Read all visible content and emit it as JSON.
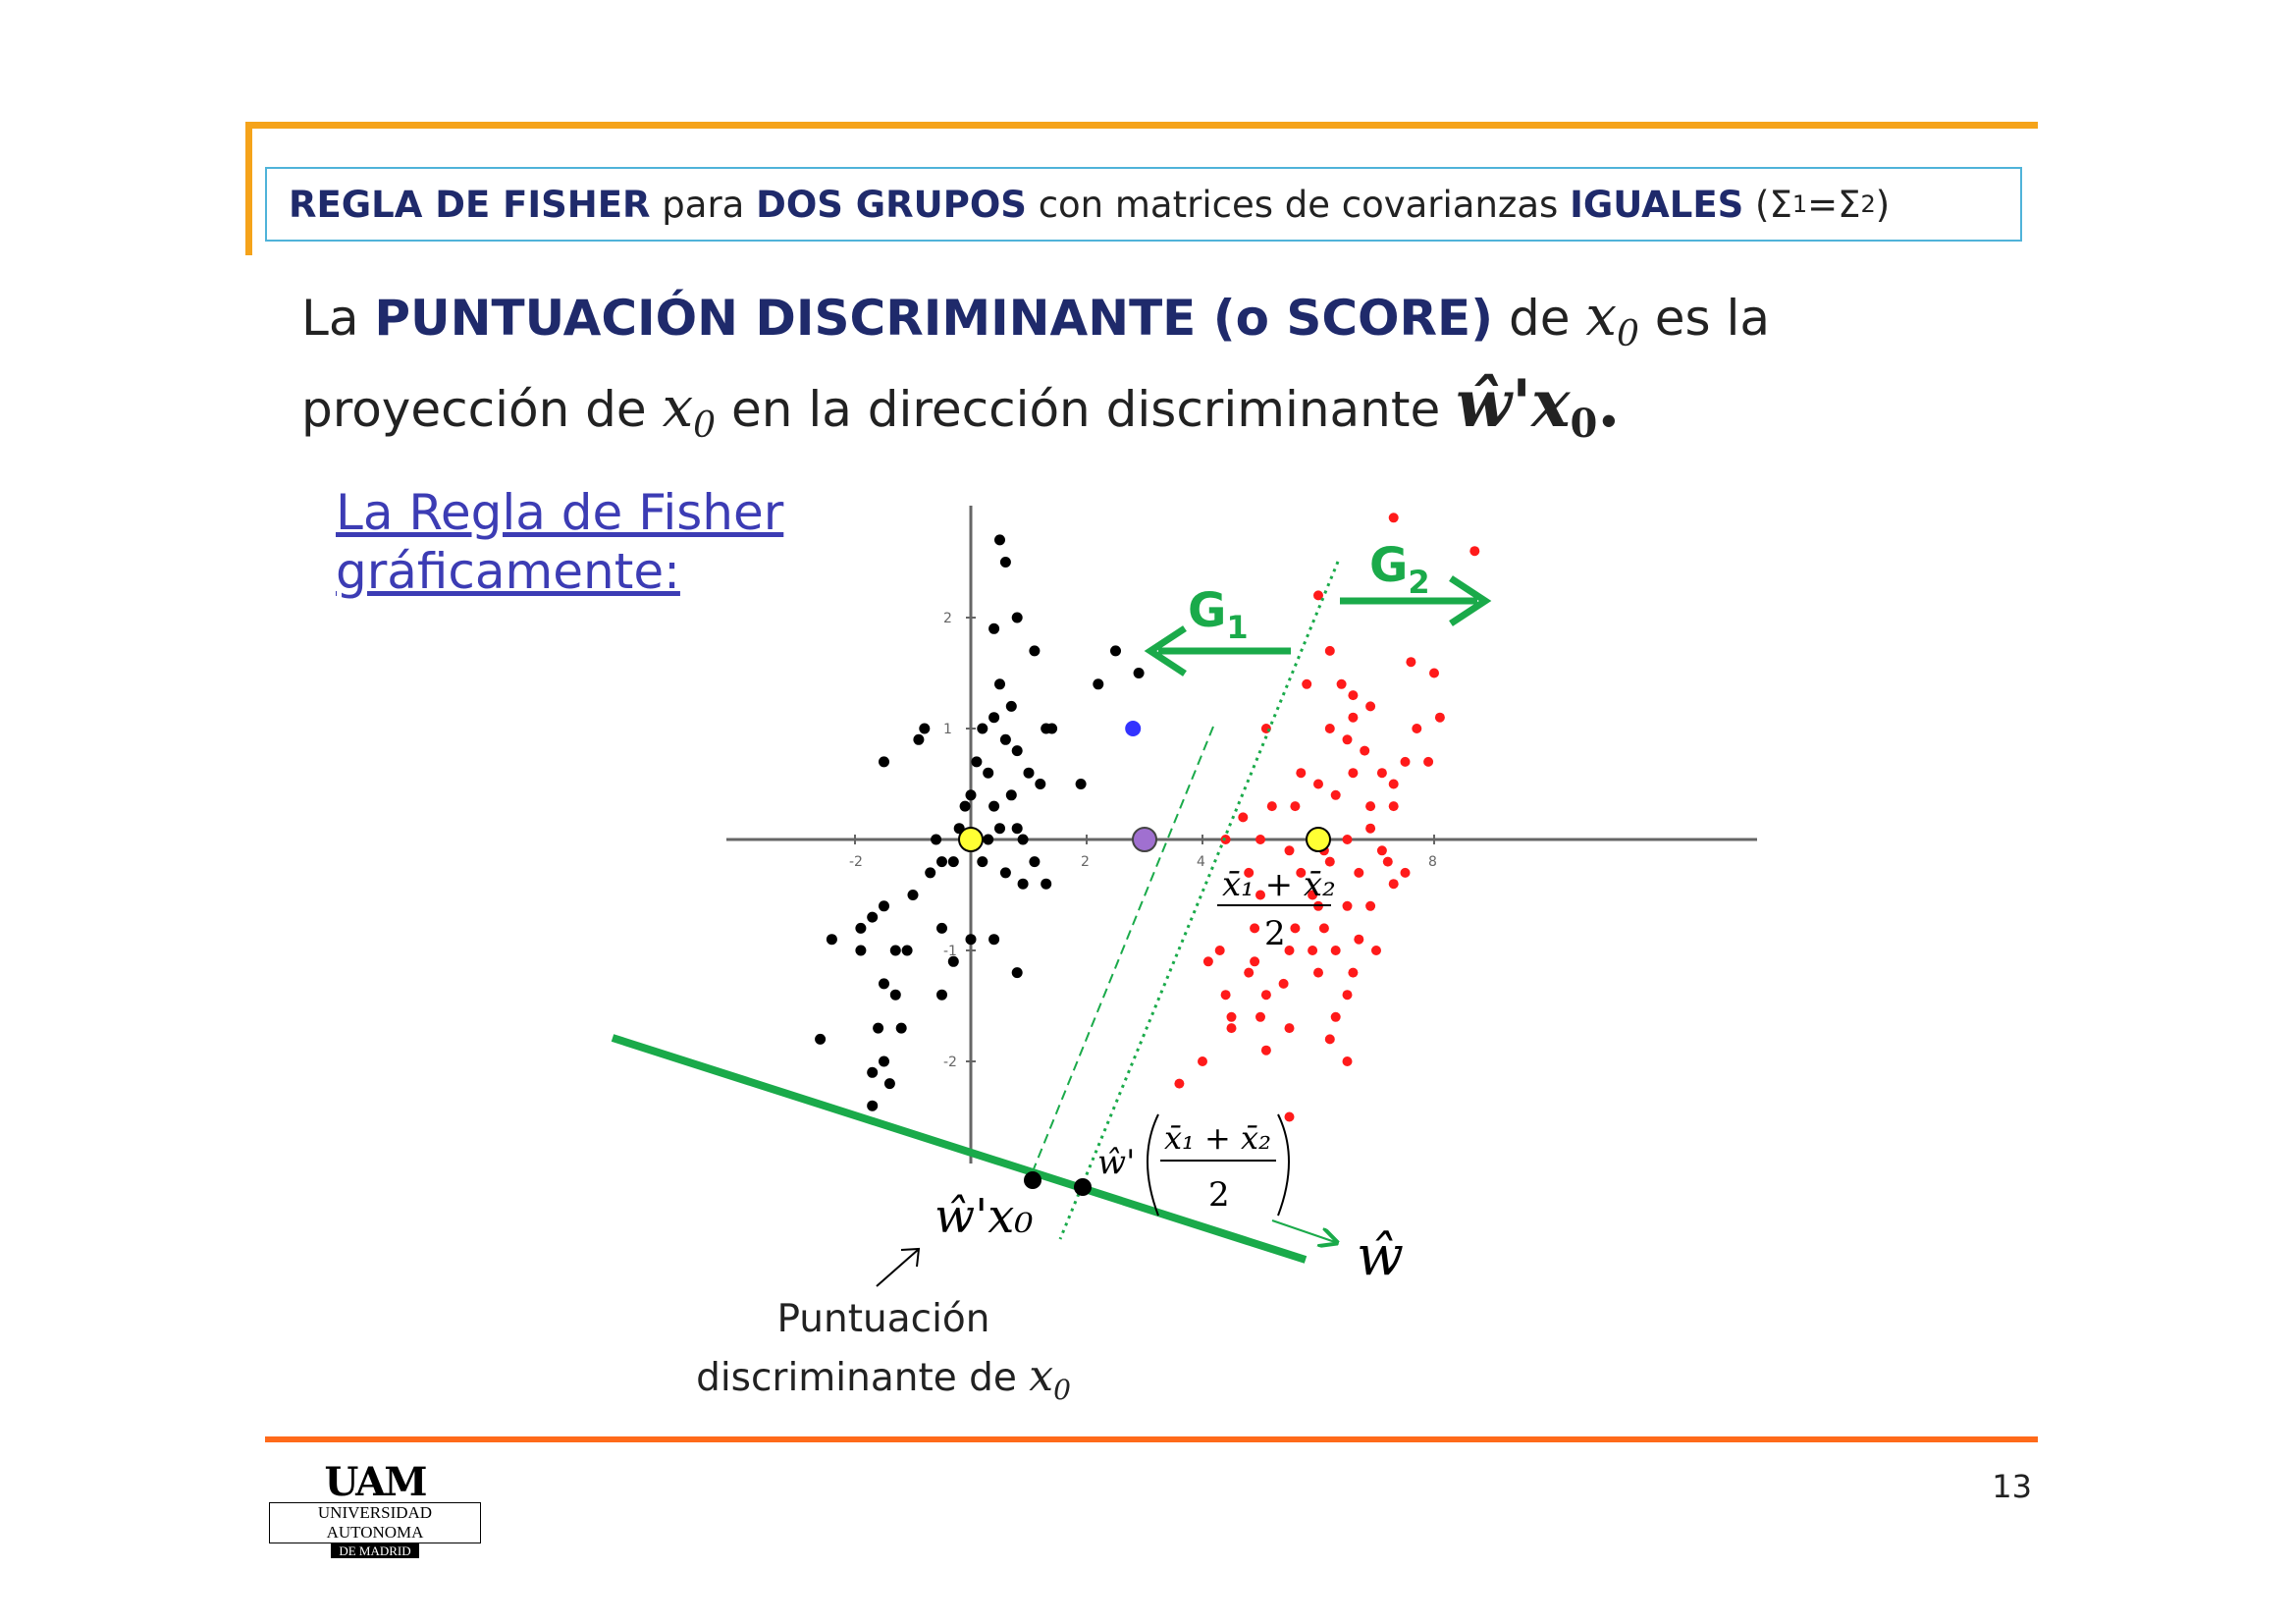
{
  "header": {
    "part1": "REGLA DE FISHER",
    "part2": " para ",
    "part3": "DOS GRUPOS",
    "part4": " con matrices de covarianzas ",
    "part5": "IGUALES",
    "part6": " (Σ",
    "sub1": "1",
    "part7": "=Σ",
    "sub2": "2",
    "part8": ")"
  },
  "intro": {
    "l1_a": "La ",
    "l1_b": "PUNTUACIÓN DISCRIMINANTE (o SCORE)",
    "l1_c": " de ",
    "l1_x": "x",
    "l1_x_sub": "0",
    "l1_d": " es la",
    "l2_a": "proyección de ",
    "l2_x": "x",
    "l2_x_sub": "0",
    "l2_b": " en la dirección discriminante ",
    "l2_formula": "ŵ'x",
    "l2_formula_sub": "0",
    "l2_end": "."
  },
  "subtitle": {
    "line1": "La Regla de Fisher",
    "line2": "gráficamente:"
  },
  "caption": {
    "line1": "Puntuación",
    "line2": "discriminante de ",
    "x": "x",
    "x_sub": "0"
  },
  "page_number": "13",
  "logo": {
    "main": "UAM",
    "line1": "UNIVERSIDAD AUTONOMA",
    "line2": "DE MADRID"
  },
  "chart_data": {
    "type": "scatter",
    "x_ticks": [
      "-2",
      "2",
      "4",
      "8"
    ],
    "y_ticks": [
      "2",
      "1",
      "-1",
      "-2"
    ],
    "group_labels": [
      {
        "name": "G",
        "sub": "1",
        "arrow": "left"
      },
      {
        "name": "G",
        "sub": "2",
        "arrow": "right"
      }
    ],
    "midpoint_label": {
      "num": "x̄₁ + x̄₂",
      "den": "2"
    },
    "projection_label": "ŵ'x₀",
    "projection_mid_label": {
      "prefix": "ŵ'",
      "num": "x̄₁ + x̄₂",
      "den": "2"
    },
    "direction_label": "ŵ",
    "colors": {
      "group1": "#000000",
      "group2": "#ff1a1a",
      "accent": "#1aaa4a",
      "new_point": "#3333ff",
      "mean": "#ffff33",
      "midpoint": "#a070d0"
    },
    "group1_mean": [
      0,
      0
    ],
    "group2_mean": [
      6,
      0
    ],
    "midpoint": [
      3,
      0
    ],
    "new_point": [
      2.8,
      1.0
    ],
    "group1": [
      [
        0.5,
        2.7
      ],
      [
        0.6,
        2.5
      ],
      [
        0.4,
        1.9
      ],
      [
        0.8,
        2.0
      ],
      [
        1.1,
        1.7
      ],
      [
        0.5,
        1.4
      ],
      [
        0.7,
        1.2
      ],
      [
        -0.8,
        1.0
      ],
      [
        -0.9,
        0.9
      ],
      [
        -1.5,
        0.7
      ],
      [
        0.2,
        1.0
      ],
      [
        0.4,
        1.1
      ],
      [
        0.6,
        0.9
      ],
      [
        0.8,
        0.8
      ],
      [
        1.3,
        1.0
      ],
      [
        1.4,
        1.0
      ],
      [
        0.1,
        0.7
      ],
      [
        0.3,
        0.6
      ],
      [
        1.0,
        0.6
      ],
      [
        1.2,
        0.5
      ],
      [
        0.0,
        0.4
      ],
      [
        -0.1,
        0.3
      ],
      [
        1.9,
        0.5
      ],
      [
        -0.2,
        0.1
      ],
      [
        0.3,
        0.0
      ],
      [
        0.5,
        0.1
      ],
      [
        0.8,
        0.1
      ],
      [
        0.9,
        0.0
      ],
      [
        -0.5,
        -0.2
      ],
      [
        -0.7,
        -0.3
      ],
      [
        -0.3,
        -0.2
      ],
      [
        0.2,
        -0.2
      ],
      [
        0.6,
        -0.3
      ],
      [
        0.9,
        -0.4
      ],
      [
        1.3,
        -0.4
      ],
      [
        -1.0,
        -0.5
      ],
      [
        -1.5,
        -0.6
      ],
      [
        -1.7,
        -0.7
      ],
      [
        -1.9,
        -0.8
      ],
      [
        -2.4,
        -0.9
      ],
      [
        -0.5,
        -0.8
      ],
      [
        0.0,
        -0.9
      ],
      [
        -1.1,
        -1.0
      ],
      [
        -1.3,
        -1.0
      ],
      [
        -0.3,
        -1.1
      ],
      [
        0.4,
        -0.9
      ],
      [
        0.8,
        -1.2
      ],
      [
        -1.9,
        -1.0
      ],
      [
        -1.5,
        -1.3
      ],
      [
        -1.3,
        -1.4
      ],
      [
        -0.5,
        -1.4
      ],
      [
        -1.2,
        -1.7
      ],
      [
        -1.6,
        -1.7
      ],
      [
        -1.5,
        -2.0
      ],
      [
        -2.6,
        -1.8
      ],
      [
        -1.7,
        -2.1
      ],
      [
        -1.4,
        -2.2
      ],
      [
        -1.7,
        -2.4
      ],
      [
        2.5,
        1.7
      ],
      [
        2.2,
        1.4
      ],
      [
        2.9,
        1.5
      ],
      [
        0.4,
        0.3
      ],
      [
        0.7,
        0.4
      ],
      [
        -0.6,
        0.0
      ],
      [
        1.1,
        -0.2
      ]
    ],
    "group2": [
      [
        7.3,
        2.9
      ],
      [
        8.7,
        2.6
      ],
      [
        6.0,
        2.2
      ],
      [
        6.2,
        1.7
      ],
      [
        6.4,
        1.4
      ],
      [
        7.6,
        1.6
      ],
      [
        8.0,
        1.5
      ],
      [
        5.8,
        1.4
      ],
      [
        6.6,
        1.3
      ],
      [
        6.9,
        1.2
      ],
      [
        5.1,
        1.0
      ],
      [
        6.2,
        1.0
      ],
      [
        6.6,
        1.1
      ],
      [
        7.7,
        1.0
      ],
      [
        8.1,
        1.1
      ],
      [
        6.5,
        0.9
      ],
      [
        6.8,
        0.8
      ],
      [
        7.5,
        0.7
      ],
      [
        7.9,
        0.7
      ],
      [
        5.7,
        0.6
      ],
      [
        6.0,
        0.5
      ],
      [
        6.6,
        0.6
      ],
      [
        7.1,
        0.6
      ],
      [
        7.3,
        0.5
      ],
      [
        4.7,
        0.2
      ],
      [
        5.2,
        0.3
      ],
      [
        5.6,
        0.3
      ],
      [
        6.3,
        0.4
      ],
      [
        6.9,
        0.3
      ],
      [
        7.3,
        0.3
      ],
      [
        4.4,
        0.0
      ],
      [
        5.0,
        0.0
      ],
      [
        5.5,
        -0.1
      ],
      [
        5.9,
        0.0
      ],
      [
        6.1,
        -0.1
      ],
      [
        6.5,
        0.0
      ],
      [
        6.9,
        0.1
      ],
      [
        4.8,
        -0.3
      ],
      [
        5.7,
        -0.3
      ],
      [
        6.2,
        -0.2
      ],
      [
        6.7,
        -0.3
      ],
      [
        7.2,
        -0.2
      ],
      [
        7.5,
        -0.3
      ],
      [
        5.0,
        -0.5
      ],
      [
        5.9,
        -0.5
      ],
      [
        6.5,
        -0.6
      ],
      [
        6.9,
        -0.6
      ],
      [
        7.3,
        -0.4
      ],
      [
        4.9,
        -0.8
      ],
      [
        5.6,
        -0.8
      ],
      [
        6.1,
        -0.8
      ],
      [
        6.7,
        -0.9
      ],
      [
        4.3,
        -1.0
      ],
      [
        4.9,
        -1.1
      ],
      [
        5.5,
        -1.0
      ],
      [
        5.9,
        -1.0
      ],
      [
        6.3,
        -1.0
      ],
      [
        7.0,
        -1.0
      ],
      [
        4.1,
        -1.1
      ],
      [
        4.8,
        -1.2
      ],
      [
        5.4,
        -1.3
      ],
      [
        6.0,
        -1.2
      ],
      [
        6.6,
        -1.2
      ],
      [
        4.4,
        -1.4
      ],
      [
        5.1,
        -1.4
      ],
      [
        4.5,
        -1.6
      ],
      [
        5.0,
        -1.6
      ],
      [
        6.5,
        -1.4
      ],
      [
        4.5,
        -1.7
      ],
      [
        5.5,
        -1.7
      ],
      [
        6.3,
        -1.6
      ],
      [
        4.0,
        -2.0
      ],
      [
        5.5,
        -2.5
      ],
      [
        6.5,
        -2.0
      ],
      [
        3.6,
        -2.2
      ],
      [
        5.1,
        -1.9
      ],
      [
        6.2,
        -1.8
      ],
      [
        7.1,
        -0.1
      ],
      [
        6.0,
        -0.6
      ]
    ]
  }
}
